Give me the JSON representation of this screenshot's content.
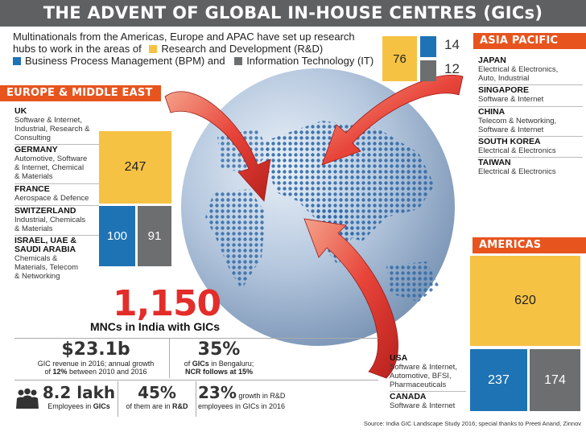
{
  "title": "THE ADVENT OF GLOBAL IN-HOUSE CENTRES (GICs)",
  "intro": {
    "line1": "Multinationals from the Americas, Europe and APAC have set up research",
    "line2": "hubs to work in the areas of",
    "rd_label": "Research and Development (R&D)",
    "bpm_label": "Business Process Management (BPM) and",
    "it_label": "Information Technology (IT)"
  },
  "colors": {
    "rd": "#f6c244",
    "bpm": "#1e73b4",
    "it": "#6d6e70",
    "region": "#e8541e",
    "highlight": "#e32d2a"
  },
  "europe": {
    "heading": "EUROPE & MIDDLE EAST",
    "countries": [
      {
        "name": "UK",
        "desc": [
          "Software & Internet,",
          "Industrial, Research &",
          "Consulting"
        ]
      },
      {
        "name": "GERMANY",
        "desc": [
          "Automotive, Software",
          "& Internet, Chemical",
          "& Materials"
        ]
      },
      {
        "name": "FRANCE",
        "desc": [
          "Aerospace & Defence"
        ]
      },
      {
        "name": "SWITZERLAND",
        "desc": [
          "Industrial, Chemicals",
          "& Materials"
        ]
      },
      {
        "name": "ISRAEL, UAE &",
        "name2": "SAUDI ARABIA",
        "desc": [
          "Chemicals &",
          "Materials, Telecom",
          "& Networking"
        ]
      }
    ],
    "rd": "247",
    "bpm": "100",
    "it": "91"
  },
  "asia": {
    "heading": "ASIA PACIFIC",
    "countries": [
      {
        "name": "JAPAN",
        "desc": [
          "Electrical & Electronics,",
          "Auto, Industrial"
        ]
      },
      {
        "name": "SINGAPORE",
        "desc": [
          "Software & Internet"
        ]
      },
      {
        "name": "CHINA",
        "desc": [
          "Telecom & Networking,",
          "Software & Internet"
        ]
      },
      {
        "name": "SOUTH KOREA",
        "desc": [
          "Electrical & Electronics"
        ]
      },
      {
        "name": "TAIWAN",
        "desc": [
          "Electrical & Electronics"
        ]
      }
    ],
    "rd": "76",
    "bpm": "14",
    "it": "12"
  },
  "americas": {
    "heading": "AMERICAS",
    "countries": [
      {
        "name": "USA",
        "desc": [
          "Software & Internet,",
          "Automotive, BFSI,",
          "Pharmaceuticals"
        ]
      },
      {
        "name": "CANADA",
        "desc": [
          "Software & Internet"
        ]
      }
    ],
    "rd": "620",
    "bpm": "237",
    "it": "174"
  },
  "headline": {
    "value": "1,150",
    "label": "MNCs in India with GICs"
  },
  "stats": {
    "revenue": {
      "value": "$23.1b",
      "desc1": "GIC revenue in 2016; annual growth",
      "desc2_pre": "of ",
      "desc2_bold": "12%",
      "desc2_post": " between 2010 and 2016"
    },
    "bengaluru": {
      "value": "35%",
      "desc1_pre": "of ",
      "desc1_bold": "GICs",
      "desc1_post": " in Bengaluru;",
      "desc2": "NCR follows at 15%"
    },
    "employees": {
      "value": "8.2 lakh",
      "desc_pre": "Employees in ",
      "desc_bold": "GICs"
    },
    "rd_share": {
      "value": "45%",
      "desc_pre": "of them are in ",
      "desc_bold": "R&D"
    },
    "growth": {
      "value": "23%",
      "desc_inline": " growth in R&D",
      "desc2": "employees in GICs in 2016"
    }
  },
  "icons": {
    "people": "people-group-icon",
    "arrows": "curved-arrow-icon"
  },
  "source": "Source: India GIC Landscape Study 2016; special thanks to Preeti Anand, Zinnov"
}
